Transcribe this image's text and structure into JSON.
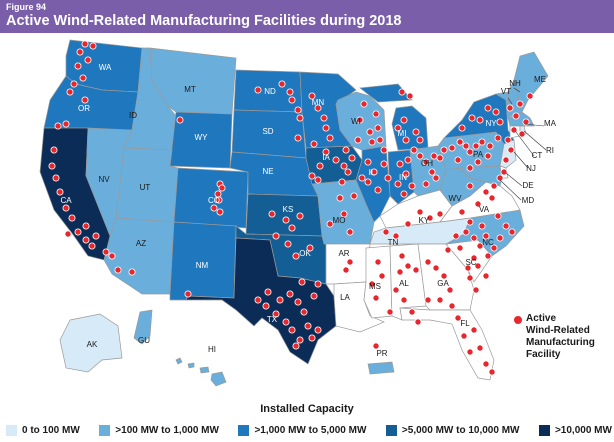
{
  "figure": {
    "label": "Figure 94",
    "title": "Active Wind-Related Manufacturing Facilities during 2018"
  },
  "legend": {
    "facility_label": "Active\nWind-Related\nManufacturing\nFacility",
    "facility_color": "#e8262e",
    "capacity_title": "Installed Capacity",
    "capacity_classes": [
      {
        "label": "0 to 100 MW",
        "color": "#d6eaf8"
      },
      {
        "label": ">100 MW to 1,000 MW",
        "color": "#6aaedc"
      },
      {
        "label": ">1,000 MW to 5,000 MW",
        "color": "#1f77bd"
      },
      {
        "label": ">5,000 MW to 10,000 MW",
        "color": "#135e95"
      },
      {
        "label": ">10,000 MW",
        "color": "#0b2c57"
      }
    ]
  },
  "colors": {
    "none": "#ffffff",
    "border": "#9a9a9a",
    "header": "#7b5eaa",
    "dot": "#e8262e"
  },
  "states": {
    "WA": {
      "label": "WA",
      "cls": 3
    },
    "OR": {
      "label": "OR",
      "cls": 3
    },
    "CA": {
      "label": "CA",
      "cls": 5
    },
    "ID": {
      "label": "ID",
      "cls": 2
    },
    "NV": {
      "label": "NV",
      "cls": 2
    },
    "MT": {
      "label": "MT",
      "cls": 2
    },
    "WY": {
      "label": "WY",
      "cls": 3
    },
    "UT": {
      "label": "UT",
      "cls": 2
    },
    "AZ": {
      "label": "AZ",
      "cls": 2
    },
    "CO": {
      "label": "CO",
      "cls": 3
    },
    "NM": {
      "label": "NM",
      "cls": 3
    },
    "ND": {
      "label": "ND",
      "cls": 3
    },
    "SD": {
      "label": "SD",
      "cls": 3
    },
    "NE": {
      "label": "NE",
      "cls": 3
    },
    "KS": {
      "label": "KS",
      "cls": 4
    },
    "OK": {
      "label": "OK",
      "cls": 4
    },
    "TX": {
      "label": "TX",
      "cls": 5
    },
    "MN": {
      "label": "MN",
      "cls": 3
    },
    "IA": {
      "label": "IA",
      "cls": 4
    },
    "MO": {
      "label": "MO",
      "cls": 2
    },
    "AR": {
      "label": "AR",
      "cls": 0
    },
    "LA": {
      "label": "LA",
      "cls": 0
    },
    "WI": {
      "label": "WI",
      "cls": 2
    },
    "IL": {
      "label": "IL",
      "cls": 3
    },
    "MI": {
      "label": "MI",
      "cls": 3
    },
    "IN": {
      "label": "IN",
      "cls": 3
    },
    "OH": {
      "label": "OH",
      "cls": 2
    },
    "KY": {
      "label": "KY",
      "cls": 0
    },
    "TN": {
      "label": "TN",
      "cls": 1
    },
    "MS": {
      "label": "MS",
      "cls": 0
    },
    "AL": {
      "label": "AL",
      "cls": 0
    },
    "GA": {
      "label": "GA",
      "cls": 0
    },
    "FL": {
      "label": "FL",
      "cls": 0
    },
    "SC": {
      "label": "SC",
      "cls": 0
    },
    "NC": {
      "label": "NC",
      "cls": 2
    },
    "VA": {
      "label": "VA",
      "cls": 0
    },
    "WV": {
      "label": "WV",
      "cls": 2
    },
    "PA": {
      "label": "PA",
      "cls": 2
    },
    "NY": {
      "label": "NY",
      "cls": 3
    },
    "VT": {
      "label": "VT",
      "cls": 2
    },
    "NH": {
      "label": "NH",
      "cls": 2
    },
    "ME": {
      "label": "ME",
      "cls": 2
    },
    "MA": {
      "label": "MA",
      "cls": 2
    },
    "CT": {
      "label": "CT",
      "cls": 0
    },
    "RI": {
      "label": "RI",
      "cls": 1
    },
    "NJ": {
      "label": "NJ",
      "cls": 1
    },
    "DE": {
      "label": "DE",
      "cls": 0
    },
    "MD": {
      "label": "MD",
      "cls": 2
    },
    "AK": {
      "label": "AK",
      "cls": 1
    },
    "HI": {
      "label": "HI",
      "cls": 2
    },
    "GU": {
      "label": "GU",
      "cls": 2
    },
    "PR": {
      "label": "PR",
      "cls": 2
    }
  }
}
